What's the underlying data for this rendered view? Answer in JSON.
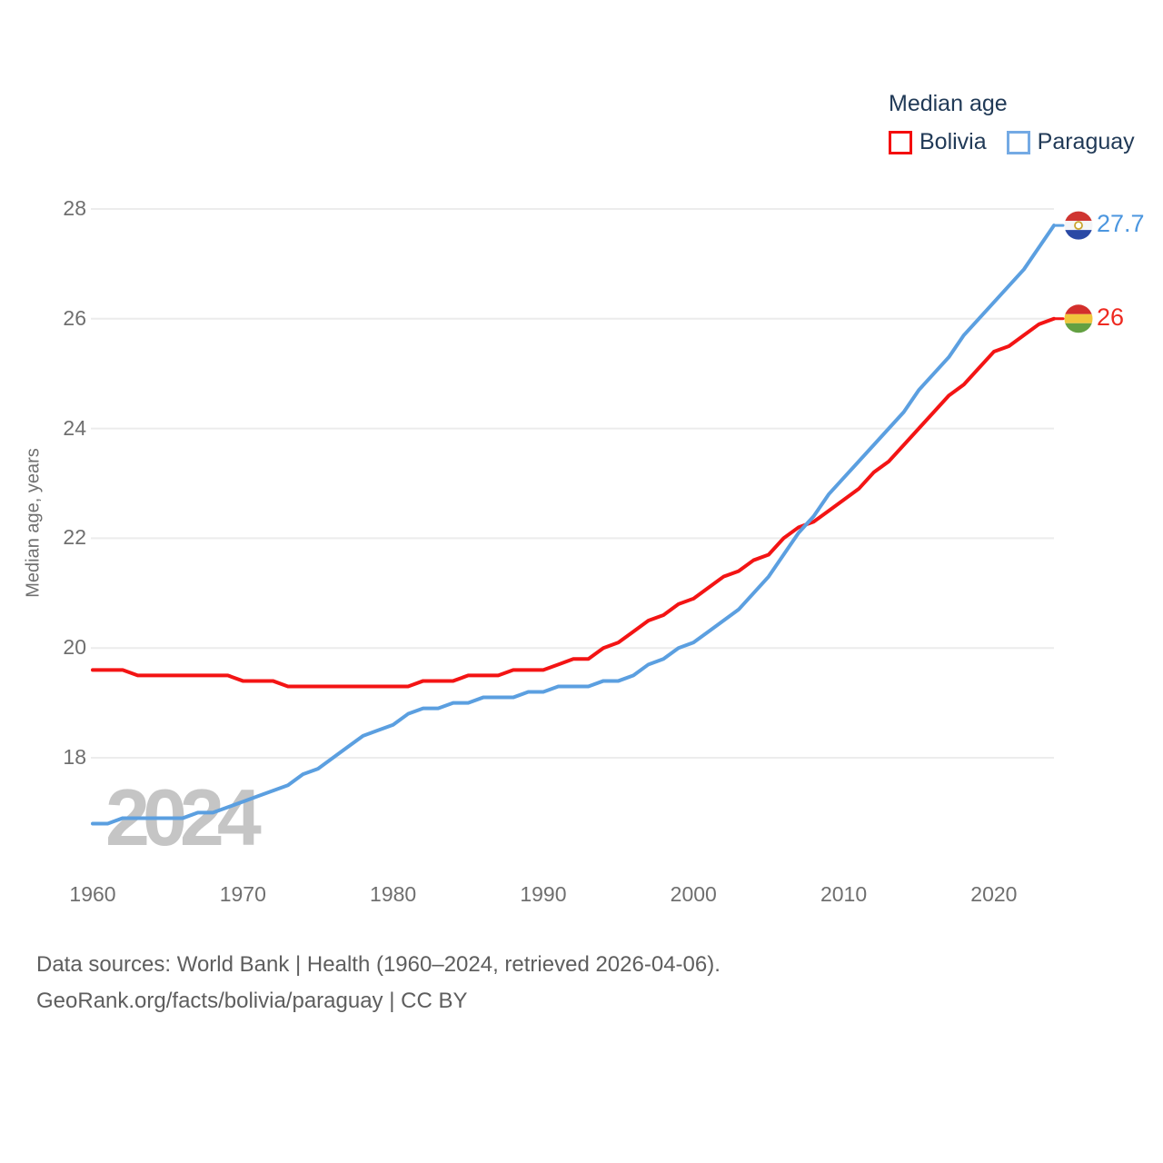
{
  "legend": {
    "title": "Median age",
    "items": [
      {
        "label": "Bolivia",
        "color": "#f40d0d"
      },
      {
        "label": "Paraguay",
        "color": "#74aae4"
      }
    ]
  },
  "axes": {
    "y_label": "Median age, years",
    "y_ticks": [
      28,
      26,
      24,
      22,
      20,
      18
    ],
    "x_ticks": [
      1960,
      1970,
      1980,
      1990,
      2000,
      2010,
      2020
    ]
  },
  "watermark": {
    "text": "2024"
  },
  "end_labels": {
    "paraguay": {
      "value": "27.7",
      "flag": "paraguay-flag"
    },
    "bolivia": {
      "value": "26",
      "flag": "bolivia-flag"
    }
  },
  "footer": {
    "line1": "Data sources: World Bank | Health (1960–2024, retrieved 2026-04-06).",
    "line2": "GeoRank.org/facts/bolivia/paraguay | CC BY"
  },
  "colors": {
    "bolivia_line": "#f31414",
    "paraguay_line": "#5b9fe0",
    "gridline": "#ececec",
    "watermark": "#c5c5c5",
    "legend_text": "#213a57",
    "tick_text": "#6f6f6f"
  },
  "chart_data": {
    "type": "line",
    "title": "Median age",
    "xlabel": "",
    "ylabel": "Median age, years",
    "xlim": [
      1960,
      2024
    ],
    "ylim": [
      16.5,
      28.6
    ],
    "grid": "horizontal",
    "legend_position": "top-right",
    "x": [
      1960,
      1961,
      1962,
      1963,
      1964,
      1965,
      1966,
      1967,
      1968,
      1969,
      1970,
      1971,
      1972,
      1973,
      1974,
      1975,
      1976,
      1977,
      1978,
      1979,
      1980,
      1981,
      1982,
      1983,
      1984,
      1985,
      1986,
      1987,
      1988,
      1989,
      1990,
      1991,
      1992,
      1993,
      1994,
      1995,
      1996,
      1997,
      1998,
      1999,
      2000,
      2001,
      2002,
      2003,
      2004,
      2005,
      2006,
      2007,
      2008,
      2009,
      2010,
      2011,
      2012,
      2013,
      2014,
      2015,
      2016,
      2017,
      2018,
      2019,
      2020,
      2021,
      2022,
      2023,
      2024
    ],
    "series": [
      {
        "name": "Bolivia",
        "color": "#f31414",
        "end_label": "26",
        "values": [
          19.6,
          19.6,
          19.6,
          19.5,
          19.5,
          19.5,
          19.5,
          19.5,
          19.5,
          19.5,
          19.4,
          19.4,
          19.4,
          19.3,
          19.3,
          19.3,
          19.3,
          19.3,
          19.3,
          19.3,
          19.3,
          19.3,
          19.4,
          19.4,
          19.4,
          19.5,
          19.5,
          19.5,
          19.6,
          19.6,
          19.6,
          19.7,
          19.8,
          19.8,
          20.0,
          20.1,
          20.3,
          20.5,
          20.6,
          20.8,
          20.9,
          21.1,
          21.3,
          21.4,
          21.6,
          21.7,
          22.0,
          22.2,
          22.3,
          22.5,
          22.7,
          22.9,
          23.2,
          23.4,
          23.7,
          24.0,
          24.3,
          24.6,
          24.8,
          25.1,
          25.4,
          25.5,
          25.7,
          25.9,
          26.0
        ]
      },
      {
        "name": "Paraguay",
        "color": "#5b9fe0",
        "end_label": "27.7",
        "values": [
          16.8,
          16.8,
          16.9,
          16.9,
          16.9,
          16.9,
          16.9,
          17.0,
          17.0,
          17.1,
          17.2,
          17.3,
          17.4,
          17.5,
          17.7,
          17.8,
          18.0,
          18.2,
          18.4,
          18.5,
          18.6,
          18.8,
          18.9,
          18.9,
          19.0,
          19.0,
          19.1,
          19.1,
          19.1,
          19.2,
          19.2,
          19.3,
          19.3,
          19.3,
          19.4,
          19.4,
          19.5,
          19.7,
          19.8,
          20.0,
          20.1,
          20.3,
          20.5,
          20.7,
          21.0,
          21.3,
          21.7,
          22.1,
          22.4,
          22.8,
          23.1,
          23.4,
          23.7,
          24.0,
          24.3,
          24.7,
          25.0,
          25.3,
          25.7,
          26.0,
          26.3,
          26.6,
          26.9,
          27.3,
          27.7
        ]
      }
    ]
  }
}
